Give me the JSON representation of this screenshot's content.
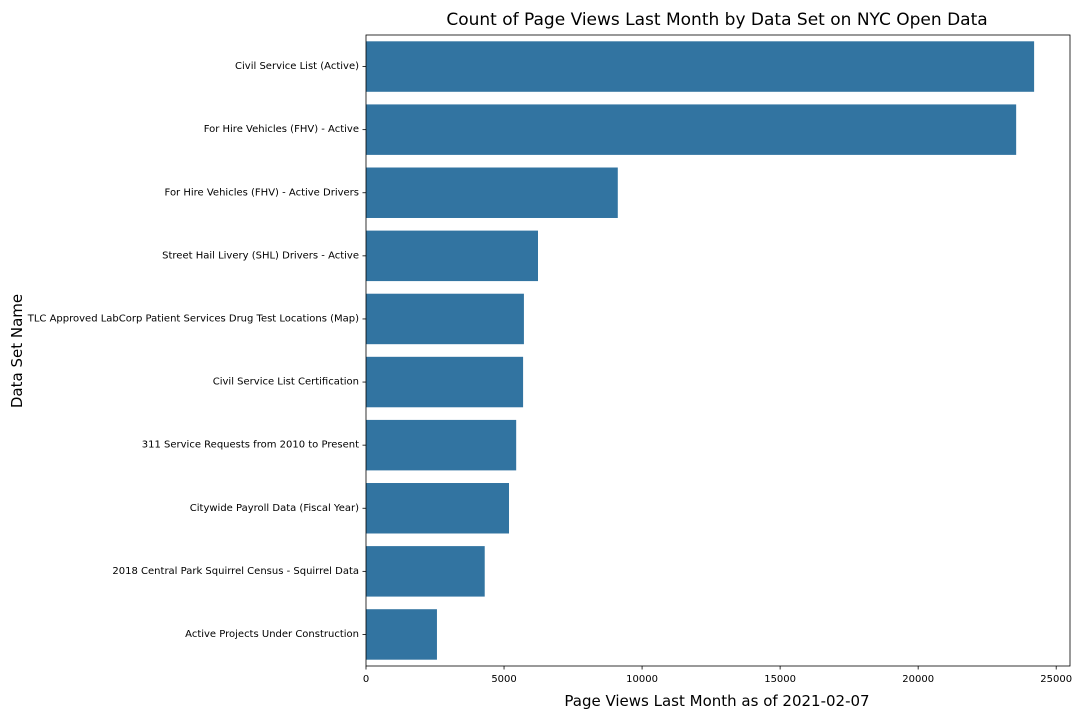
{
  "chart_data": {
    "type": "bar",
    "orientation": "horizontal",
    "title": "Count of Page Views Last Month by Data Set on NYC Open Data",
    "xlabel": "Page Views Last Month as of 2021-02-07",
    "ylabel": "Data Set Name",
    "xlim": [
      0,
      25500
    ],
    "xticks": [
      0,
      5000,
      10000,
      15000,
      20000,
      25000
    ],
    "grid": false,
    "bar_color": "#3274a1",
    "categories": [
      "Civil Service List (Active)",
      "For Hire Vehicles (FHV) - Active",
      "For Hire Vehicles (FHV) - Active Drivers",
      "Street Hail Livery (SHL) Drivers - Active",
      "TLC Approved LabCorp Patient Services Drug Test Locations (Map)",
      "Civil Service List Certification",
      "311 Service Requests from 2010 to Present",
      "Citywide Payroll Data (Fiscal Year)",
      "2018 Central Park Squirrel Census - Squirrel Data",
      "Active Projects Under Construction"
    ],
    "values": [
      24200,
      23550,
      9120,
      6230,
      5720,
      5690,
      5440,
      5180,
      4300,
      2570
    ]
  }
}
